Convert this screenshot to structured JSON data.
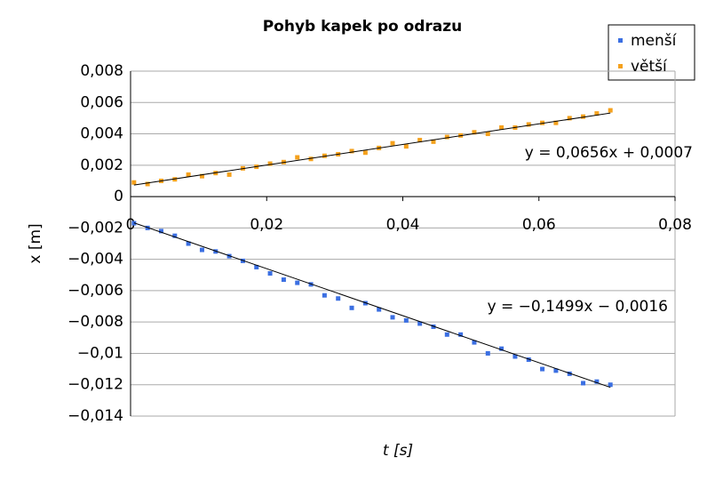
{
  "chart_data": {
    "type": "scatter",
    "title": "Pohyb kapek po odrazu",
    "x_label": "t [s]",
    "y_label": "x [m]",
    "xlim": [
      0,
      0.08
    ],
    "xticks": [
      0,
      {
        "value": 0.02,
        "label": "0,02"
      },
      {
        "value": 0.04,
        "label": "0,04"
      },
      {
        "value": 0.06,
        "label": "0,06"
      },
      {
        "value": 0.08,
        "label": "0,08"
      }
    ],
    "ylim": [
      -0.014,
      0.008
    ],
    "yticks": [
      {
        "value": -0.014,
        "label": "−0,014"
      },
      {
        "value": -0.012,
        "label": "−0,012"
      },
      {
        "value": -0.01,
        "label": "−0,01"
      },
      {
        "value": -0.008,
        "label": "−0,008"
      },
      {
        "value": -0.006,
        "label": "−0,006"
      },
      {
        "value": -0.004,
        "label": "−0,004"
      },
      {
        "value": -0.002,
        "label": "−0,002"
      },
      0,
      {
        "value": 0.002,
        "label": "0,002"
      },
      {
        "value": 0.004,
        "label": "0,004"
      },
      {
        "value": 0.006,
        "label": "0,006"
      },
      {
        "value": 0.008,
        "label": "0,008"
      }
    ],
    "grid": true,
    "x": [
      0.0005,
      0.0025,
      0.0045,
      0.0065,
      0.0085,
      0.0105,
      0.0125,
      0.0145,
      0.0165,
      0.0185,
      0.0205,
      0.0225,
      0.0245,
      0.0265,
      0.0285,
      0.0305,
      0.0325,
      0.0345,
      0.0365,
      0.0385,
      0.0405,
      0.0425,
      0.0445,
      0.0465,
      0.0485,
      0.0505,
      0.0525,
      0.0545,
      0.0565,
      0.0585,
      0.0605,
      0.0625,
      0.0645,
      0.0665,
      0.0685,
      0.0705
    ],
    "series": [
      {
        "name": "menší",
        "color": "#3b6fe2",
        "values": [
          -0.0017,
          -0.002,
          -0.0022,
          -0.0025,
          -0.003,
          -0.0034,
          -0.0035,
          -0.0038,
          -0.0041,
          -0.0045,
          -0.0049,
          -0.0053,
          -0.0055,
          -0.0056,
          -0.0063,
          -0.0065,
          -0.0071,
          -0.0068,
          -0.0072,
          -0.0077,
          -0.0079,
          -0.0081,
          -0.0083,
          -0.0088,
          -0.0088,
          -0.0093,
          -0.01,
          -0.0097,
          -0.0102,
          -0.0104,
          -0.011,
          -0.0111,
          -0.0113,
          -0.0119,
          -0.0118,
          -0.012
        ],
        "trendline": {
          "slope": -0.1499,
          "intercept": -0.0016,
          "label": "y = −0,1499x − 0,0016"
        }
      },
      {
        "name": "větší",
        "color": "#f5a11c",
        "values": [
          0.0009,
          0.0008,
          0.001,
          0.0011,
          0.0014,
          0.0013,
          0.0015,
          0.0014,
          0.0018,
          0.0019,
          0.0021,
          0.0022,
          0.0025,
          0.0024,
          0.0026,
          0.0027,
          0.0029,
          0.0028,
          0.0031,
          0.0034,
          0.0032,
          0.0036,
          0.0035,
          0.0038,
          0.0039,
          0.0041,
          0.004,
          0.0044,
          0.0044,
          0.0046,
          0.0047,
          0.0047,
          0.005,
          0.0051,
          0.0053,
          0.0055
        ],
        "trendline": {
          "slope": 0.0656,
          "intercept": 0.0007,
          "label": "y = 0,0656x + 0,0007"
        }
      }
    ]
  }
}
